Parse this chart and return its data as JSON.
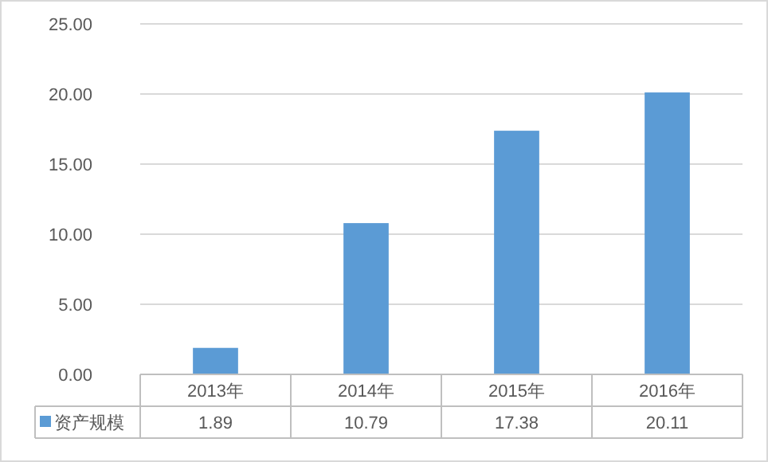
{
  "chart_data": {
    "type": "bar",
    "categories": [
      "2013年",
      "2014年",
      "2015年",
      "2016年"
    ],
    "series": [
      {
        "name": "资产规模",
        "color": "#5b9bd5",
        "values": [
          1.89,
          10.79,
          17.38,
          20.11
        ]
      }
    ],
    "ylim": [
      0,
      25
    ],
    "yticks": [
      {
        "value": 0,
        "label": "0.00"
      },
      {
        "value": 5,
        "label": "5.00"
      },
      {
        "value": 10,
        "label": "10.00"
      },
      {
        "value": 15,
        "label": "15.00"
      },
      {
        "value": 20,
        "label": "20.00"
      },
      {
        "value": 25,
        "label": "25.00"
      }
    ],
    "grid": "y",
    "legend": "bottom",
    "data_labels": true
  }
}
